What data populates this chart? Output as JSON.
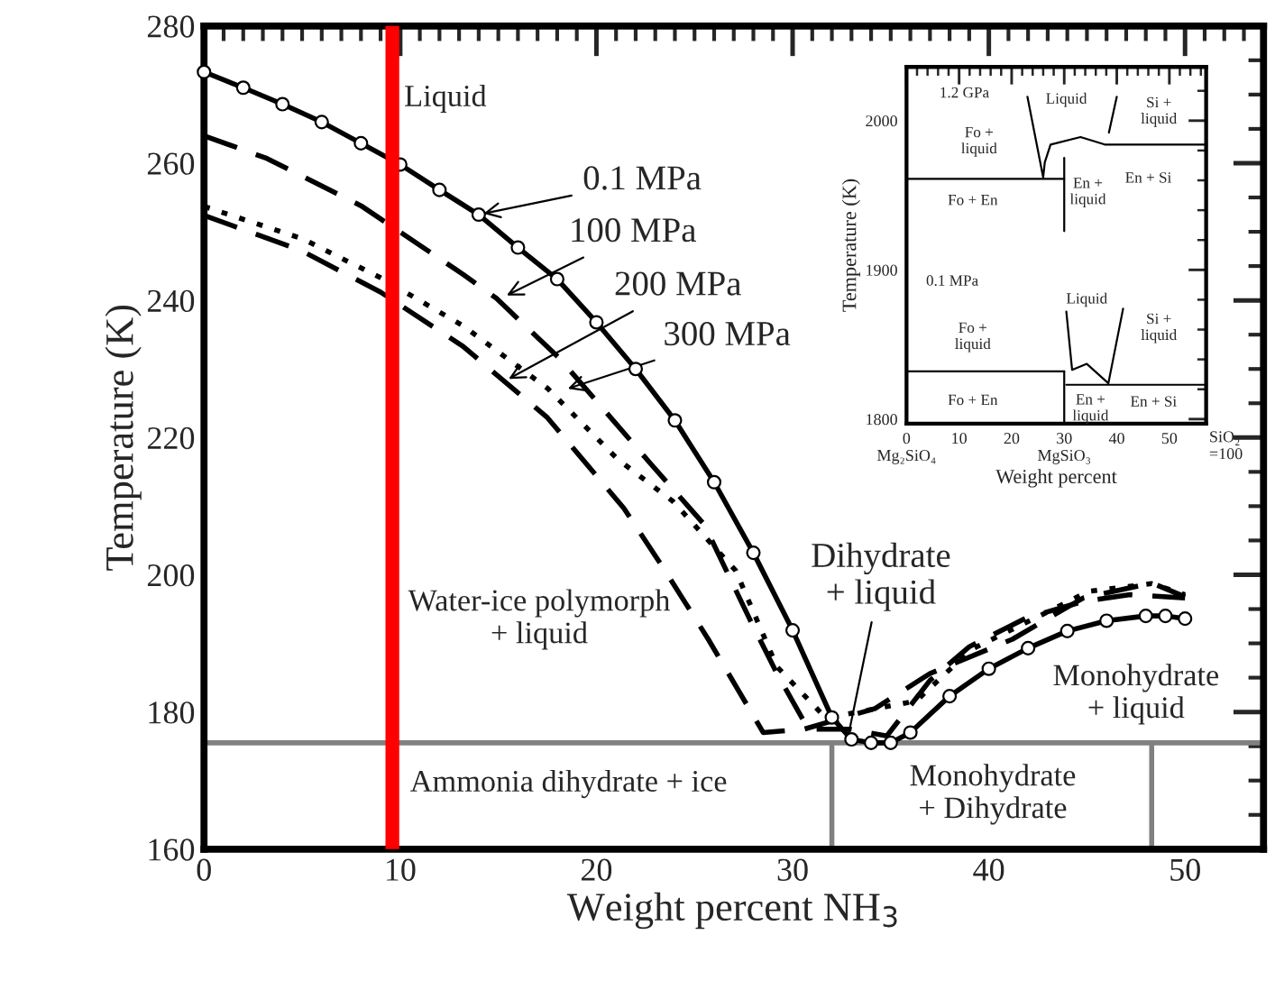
{
  "chart_data": [
    {
      "type": "line",
      "xlabel": "Weight percent NH$_{3}$",
      "ylabel": "Temperature (K)",
      "xlim": [
        0,
        54
      ],
      "xticks": [
        0,
        10,
        20,
        30,
        40,
        50
      ],
      "ylim": [
        160,
        280
      ],
      "yticks": [
        160,
        180,
        200,
        220,
        240,
        260,
        280
      ],
      "grid": false,
      "legend": false,
      "series": [
        {
          "color": "#000000",
          "line_style": "solid",
          "marker": "circle",
          "x": [
            0,
            2,
            4,
            6,
            8,
            10,
            12,
            14,
            16,
            18,
            20,
            22,
            24,
            26,
            28,
            30,
            32,
            33,
            34,
            35,
            36,
            38,
            40,
            42,
            44,
            46,
            48,
            49,
            50
          ],
          "values": [
            273.3,
            271.0,
            268.6,
            266.0,
            262.9,
            259.8,
            256.1,
            252.5,
            247.7,
            243.1,
            236.8,
            230.0,
            222.5,
            213.5,
            203.2,
            191.9,
            179.2,
            176.0,
            175.5,
            175.5,
            177.0,
            182.3,
            186.3,
            189.3,
            191.8,
            193.3,
            194.0,
            194.0,
            193.6
          ]
        },
        {
          "color": "#000000",
          "line_style": "dashed",
          "marker": "none",
          "x": [
            0,
            3.2,
            8,
            13.2,
            14.9,
            18.1,
            22.7,
            25.5,
            27.8,
            29.2,
            30.8,
            32.9,
            34.8,
            37,
            39,
            41.9,
            44.8,
            47.2,
            50
          ],
          "values": [
            264.0,
            260.7,
            253.8,
            243.8,
            240.3,
            231.6,
            216.4,
            207.3,
            193.6,
            185.6,
            177.5,
            177.5,
            176.5,
            184.6,
            189.5,
            193.7,
            196.1,
            197.1,
            196.6
          ]
        },
        {
          "color": "#000000",
          "line_style": "dotted",
          "marker": "none",
          "x": [
            0,
            5,
            9,
            13.2,
            17.5,
            21.1,
            23.9,
            27.1,
            29.2,
            31.7,
            36.3,
            39.1,
            42.3,
            45.1,
            48.3,
            50
          ],
          "values": [
            253.7,
            249.0,
            243.3,
            236.3,
            227.2,
            216.8,
            210.7,
            200.6,
            186.6,
            179.1,
            181.6,
            189.1,
            193.6,
            197.6,
            198.7,
            197.1
          ]
        },
        {
          "color": "#000000",
          "line_style": "dashed",
          "marker": "none",
          "x": [
            0,
            5,
            9,
            13.2,
            17.5,
            21.4,
            23.5,
            25.7,
            28.5,
            30.6,
            34.2,
            37,
            41.2,
            44.8,
            48.3,
            50
          ],
          "values": [
            252.4,
            247.2,
            241.2,
            233.3,
            222.9,
            209.7,
            200.6,
            190.6,
            177.0,
            177.5,
            180.5,
            185.6,
            190.6,
            196.6,
            198.8,
            196.8
          ]
        },
        {
          "color": "#808080",
          "line_style": "solid",
          "marker": "none",
          "x": [
            0,
            54
          ],
          "values": [
            175.5,
            175.5
          ]
        },
        {
          "color": "#808080",
          "line_style": "solid",
          "marker": "none",
          "x": [
            32,
            32
          ],
          "values": [
            160,
            175.5
          ]
        },
        {
          "color": "#808080",
          "line_style": "solid",
          "marker": "none",
          "x": [
            48.3,
            48.3
          ],
          "values": [
            160,
            175.5
          ]
        }
      ],
      "ref_lines": [
        {
          "axis": "x",
          "value": 9.6,
          "color": "#ff0000"
        }
      ],
      "annotations": [
        "Liquid",
        {
          "text": "0.1 MPa",
          "x": 14,
          "y": 252.5
        },
        {
          "text": "100 MPa",
          "x": 15.2,
          "y": 240.4
        },
        {
          "text": "200 MPa",
          "x": 15.3,
          "y": 228.2
        },
        {
          "text": "300 MPa",
          "x": 18.3,
          "y": 226.9
        },
        "Water-ice polymorph\n+ liquid",
        {
          "text": "Dihydrate\n+ liquid",
          "x": 32.8,
          "y": 176
        },
        "Ammonia dihydrate + ice",
        "Monohydrate\n+ Dihydrate",
        "Monohydrate\n+ liquid"
      ]
    },
    {
      "type": "line",
      "xlabel": "Weight percent",
      "ylabel": "Temperature (K)",
      "xlim": [
        0,
        57
      ],
      "xticks": [
        {
          "value": 0,
          "label": "0\nMg₂SiO₄"
        },
        10,
        20,
        {
          "value": 30,
          "label": "30\nMgSiO₃"
        },
        40,
        50
      ],
      "ylim": [
        1797,
        2036
      ],
      "yticks": [
        1800,
        1900,
        2000
      ],
      "grid": false,
      "legend": false,
      "series": [
        {
          "color": "#000000",
          "line_style": "solid",
          "marker": "none",
          "x": [
            0,
            30
          ],
          "values": [
            1961,
            1961
          ]
        },
        {
          "color": "#000000",
          "line_style": "solid",
          "marker": "none",
          "x": [
            23,
            26,
            26.3,
            27.4,
            33.1,
            37.7,
            57
          ],
          "values": [
            2016,
            1962,
            1972,
            1984,
            1989,
            1984,
            1984
          ]
        },
        {
          "color": "#000000",
          "line_style": "solid",
          "marker": "none",
          "x": [
            30,
            30
          ],
          "values": [
            1975,
            1926
          ]
        },
        {
          "color": "#000000",
          "line_style": "solid",
          "marker": "none",
          "x": [
            40,
            38.5
          ],
          "values": [
            2016,
            1992
          ]
        },
        {
          "color": "#000000",
          "line_style": "solid",
          "marker": "none",
          "x": [
            0,
            30
          ],
          "values": [
            1832,
            1832
          ]
        },
        {
          "color": "#000000",
          "line_style": "solid",
          "marker": "none",
          "x": [
            30.4,
            57
          ],
          "values": [
            1823,
            1823
          ]
        },
        {
          "color": "#000000",
          "line_style": "solid",
          "marker": "none",
          "x": [
            30,
            30
          ],
          "values": [
            1832,
            1797
          ]
        },
        {
          "color": "#000000",
          "line_style": "solid",
          "marker": "none",
          "x": [
            30.4,
            31.5,
            34.3,
            38.4,
            41.2
          ],
          "values": [
            1872,
            1833,
            1837,
            1824,
            1874
          ]
        }
      ],
      "annotations": [
        "1.2 GPa",
        "Liquid",
        "Si +\nliquid",
        "Fo +\nliquid",
        "En +\nliquid",
        "En + Si",
        "Fo + En",
        "0.1 MPa",
        "Liquid",
        "Si +\nliquid",
        "Fo +\nliquid",
        "Fo + En",
        "En +\nliquid",
        "En + Si",
        "SiO₂\n=100"
      ]
    }
  ]
}
